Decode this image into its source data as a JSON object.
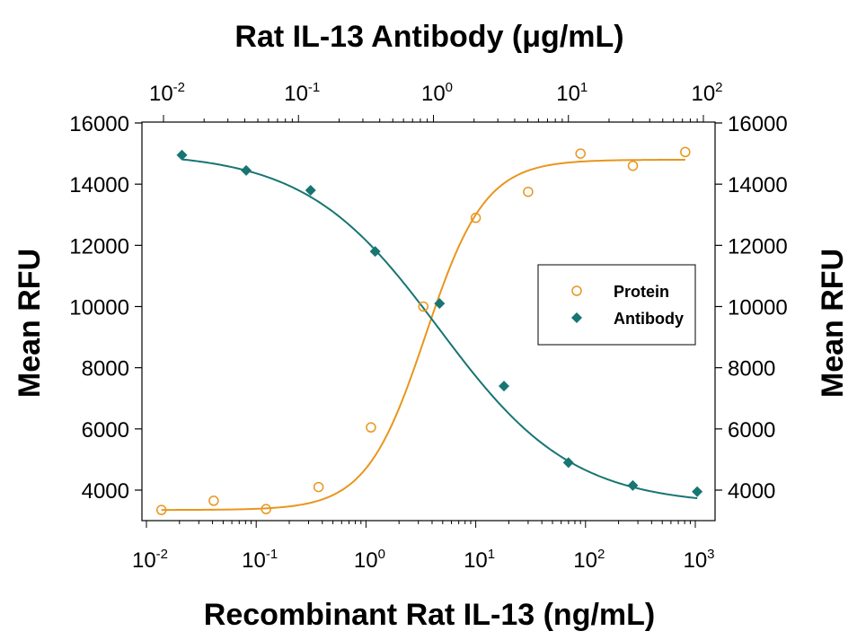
{
  "chart_data": {
    "type": "scatter",
    "title": "Rat IL-13 Antibody (μg/mL)",
    "xlabel": "Recombinant Rat IL-13 (ng/mL)",
    "ylabel_left": "Mean RFU",
    "ylabel_right": "Mean RFU",
    "x_bottom": {
      "scale": "log",
      "range": [
        0.01,
        1000
      ],
      "tick_labels": [
        {
          "value": 0.01,
          "base": "10",
          "exp": "-2"
        },
        {
          "value": 0.1,
          "base": "10",
          "exp": "-1"
        },
        {
          "value": 1,
          "base": "10",
          "exp": "0"
        },
        {
          "value": 10,
          "base": "10",
          "exp": "1"
        },
        {
          "value": 100,
          "base": "10",
          "exp": "2"
        },
        {
          "value": 1000,
          "base": "10",
          "exp": "3"
        }
      ]
    },
    "x_top": {
      "scale": "log",
      "range": [
        0.01,
        100
      ],
      "tick_labels": [
        {
          "value": 0.01,
          "base": "10",
          "exp": "-2"
        },
        {
          "value": 0.1,
          "base": "10",
          "exp": "-1"
        },
        {
          "value": 1,
          "base": "10",
          "exp": "0"
        },
        {
          "value": 10,
          "base": "10",
          "exp": "1"
        },
        {
          "value": 100,
          "base": "10",
          "exp": "2"
        }
      ]
    },
    "y": {
      "range": [
        3000,
        16000
      ],
      "ticks": [
        "4000",
        "6000",
        "8000",
        "10000",
        "12000",
        "14000",
        "16000"
      ]
    },
    "legend": {
      "position": "right",
      "entries": [
        "Protein",
        "Antibody"
      ]
    },
    "series": [
      {
        "name": "Protein",
        "axis": "bottom",
        "color": "#E8961E",
        "marker": "open-circle",
        "x": [
          0.0137,
          0.041,
          0.123,
          0.37,
          1.11,
          3.33,
          10,
          30,
          90,
          270,
          810
        ],
        "y": [
          3350,
          3650,
          3380,
          4100,
          6050,
          10000,
          12900,
          13750,
          15000,
          14600,
          15050
        ],
        "fit": {
          "bottom": 3350,
          "top": 14800,
          "ec50": 3.5,
          "hill": 1.6
        }
      },
      {
        "name": "Antibody",
        "axis": "top",
        "color": "#177572",
        "marker": "diamond",
        "x": [
          0.0137,
          0.041,
          0.123,
          0.37,
          1.11,
          3.33,
          10,
          30,
          90
        ],
        "y": [
          14950,
          14450,
          13800,
          11800,
          10100,
          7400,
          4900,
          4150,
          3950
        ],
        "fit": {
          "bottom": 3500,
          "top": 15050,
          "ec50": 1.1,
          "hill": 0.88
        }
      }
    ]
  }
}
